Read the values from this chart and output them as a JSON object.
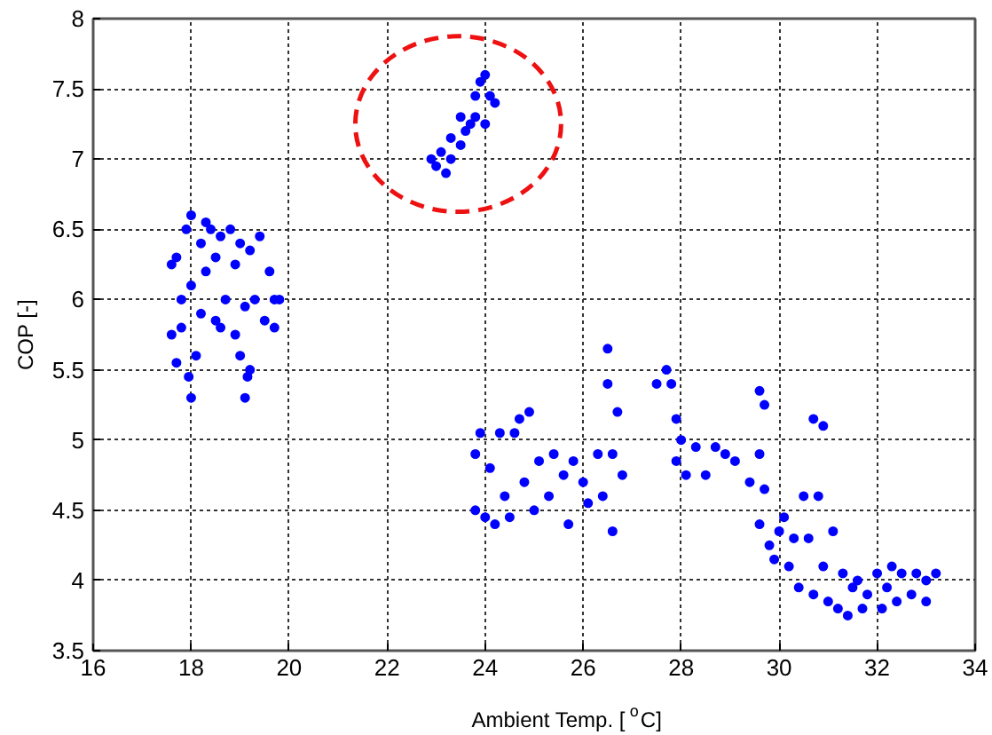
{
  "chart_data": {
    "type": "scatter",
    "xlabel": "Ambient Temp. [$^{o}$C]",
    "ylabel": "COP [-]",
    "xlim": [
      16,
      34
    ],
    "xticks": [
      16,
      18,
      20,
      22,
      24,
      26,
      28,
      30,
      32,
      34
    ],
    "ylim": [
      3.5,
      8
    ],
    "yticks": [
      3.5,
      4,
      4.5,
      5,
      5.5,
      6,
      6.5,
      7,
      7.5,
      8
    ],
    "grid": true,
    "marker": "circle",
    "series": [
      {
        "color": "#0000ff",
        "x": [
          17.6,
          17.6,
          17.7,
          17.7,
          17.8,
          17.8,
          17.9,
          17.95,
          18.0,
          18.0,
          18.0,
          18.1,
          18.2,
          18.2,
          18.3,
          18.3,
          18.4,
          18.5,
          18.5,
          18.6,
          18.7,
          18.8,
          18.9,
          18.9,
          19.0,
          19.1,
          19.1,
          19.2,
          19.2,
          19.3,
          19.4,
          19.5,
          19.6,
          19.7,
          19.8,
          19.7,
          18.6,
          19.0,
          19.15
        ],
        "values": [
          6.25,
          5.75,
          6.3,
          5.55,
          6.0,
          5.8,
          6.5,
          5.45,
          6.6,
          5.3,
          6.1,
          5.6,
          6.4,
          5.9,
          6.55,
          6.2,
          6.5,
          5.85,
          6.3,
          6.45,
          6.0,
          6.5,
          5.75,
          6.25,
          6.4,
          5.95,
          5.3,
          5.5,
          6.35,
          6.0,
          6.45,
          5.85,
          6.2,
          6.0,
          6.0,
          5.8,
          5.8,
          5.6,
          5.45
        ]
      },
      {
        "color": "#0000ff",
        "x": [
          22.9,
          23.0,
          23.1,
          23.2,
          23.3,
          23.3,
          23.5,
          23.6,
          23.7,
          23.8,
          23.8,
          23.9,
          24.0,
          24.1,
          24.2,
          24.0,
          23.5
        ],
        "values": [
          7.0,
          6.95,
          7.05,
          6.9,
          7.15,
          7.0,
          7.1,
          7.2,
          7.25,
          7.3,
          7.45,
          7.55,
          7.6,
          7.45,
          7.4,
          7.25,
          7.3
        ]
      },
      {
        "color": "#0000ff",
        "x": [
          23.8,
          23.8,
          23.9,
          24.0,
          24.1,
          24.2,
          24.3,
          24.4,
          24.5,
          24.6,
          24.7,
          24.8,
          24.9,
          25.0,
          25.1,
          25.3,
          25.4,
          25.6,
          25.7,
          25.8,
          26.0,
          26.1,
          26.3,
          26.4,
          26.5,
          26.5,
          26.6,
          26.6,
          26.7,
          26.8,
          27.5,
          27.7,
          27.8,
          27.9,
          27.9,
          28.0,
          28.1,
          28.3,
          28.5,
          28.7,
          28.9,
          29.1,
          29.4,
          29.6,
          29.6,
          29.6,
          29.7,
          29.7,
          29.8,
          29.9,
          30.0,
          30.1,
          30.2,
          30.3,
          30.4,
          30.5,
          30.6,
          30.7,
          30.7,
          30.8,
          30.9,
          30.9,
          31.0,
          31.1,
          31.2,
          31.3,
          31.4,
          31.5,
          31.6,
          31.7,
          31.8,
          32.0,
          32.1,
          32.2,
          32.3,
          32.4,
          32.5,
          32.7,
          32.8,
          33.0,
          33.2,
          33.0
        ],
        "values": [
          4.5,
          4.9,
          5.05,
          4.45,
          4.8,
          4.4,
          5.05,
          4.6,
          4.45,
          5.05,
          5.15,
          4.7,
          5.2,
          4.5,
          4.85,
          4.6,
          4.9,
          4.75,
          4.4,
          4.85,
          4.7,
          4.55,
          4.9,
          4.6,
          5.65,
          5.4,
          4.9,
          4.35,
          5.2,
          4.75,
          5.4,
          5.5,
          5.4,
          5.15,
          4.85,
          5.0,
          4.75,
          4.95,
          4.75,
          4.95,
          4.9,
          4.85,
          4.7,
          5.35,
          4.9,
          4.4,
          5.25,
          4.65,
          4.25,
          4.15,
          4.35,
          4.45,
          4.1,
          4.3,
          3.95,
          4.6,
          4.3,
          5.15,
          3.9,
          4.6,
          5.1,
          4.1,
          3.85,
          4.35,
          3.8,
          4.05,
          3.75,
          3.95,
          4.0,
          3.8,
          3.9,
          4.05,
          3.8,
          3.95,
          4.1,
          3.85,
          4.05,
          3.9,
          4.05,
          4.0,
          4.05,
          3.85
        ]
      }
    ]
  }
}
